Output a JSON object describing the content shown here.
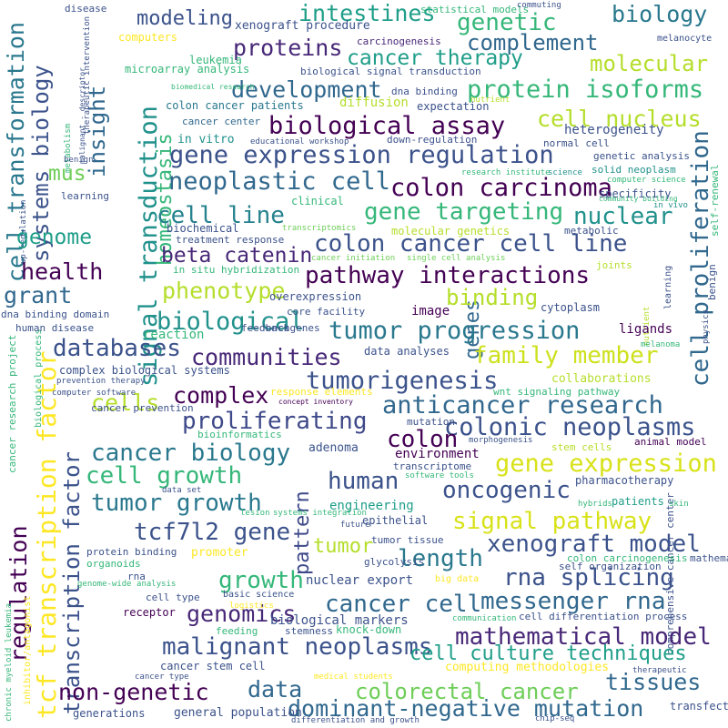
{
  "words": [
    {
      "text": "cell transformation",
      "color": "#2a788e"
    },
    {
      "text": "systems biology",
      "color": "#3b528b"
    },
    {
      "text": "cell proliferation",
      "color": "#31688e"
    },
    {
      "text": "signal transduction",
      "color": "#21918c"
    },
    {
      "text": "tcf transcription factor",
      "color": "#fde725"
    },
    {
      "text": "regulation",
      "color": "#440154"
    },
    {
      "text": "transcription factor",
      "color": "#3b528b"
    },
    {
      "text": "homeostasis",
      "color": "#35b779"
    },
    {
      "text": "insight",
      "color": "#31688e"
    },
    {
      "text": "pattern",
      "color": "#3e4989"
    },
    {
      "text": "genes",
      "color": "#31688e"
    },
    {
      "text": "mus",
      "color": "#6ece58"
    },
    {
      "text": "genome",
      "color": "#1f9e89"
    },
    {
      "text": "health",
      "color": "#440154"
    },
    {
      "text": "grant",
      "color": "#31688e"
    },
    {
      "text": "intestines",
      "color": "#1f9e89"
    },
    {
      "text": "genetic",
      "color": "#35b779"
    },
    {
      "text": "biology",
      "color": "#2a788e"
    },
    {
      "text": "modeling",
      "color": "#3b528b"
    },
    {
      "text": "complement",
      "color": "#31688e"
    },
    {
      "text": "proteins",
      "color": "#482878"
    },
    {
      "text": "cancer therapy",
      "color": "#1f9e89"
    },
    {
      "text": "molecular",
      "color": "#b5de2b"
    },
    {
      "text": "development",
      "color": "#31688e"
    },
    {
      "text": "protein isoforms",
      "color": "#35b779"
    },
    {
      "text": "biological assay",
      "color": "#440154"
    },
    {
      "text": "cell nucleus",
      "color": "#b5de2b"
    },
    {
      "text": "gene expression regulation",
      "color": "#3b528b"
    },
    {
      "text": "neoplastic cell",
      "color": "#31688e"
    },
    {
      "text": "colon carcinoma",
      "color": "#440154"
    },
    {
      "text": "cell line",
      "color": "#26828e"
    },
    {
      "text": "gene targeting",
      "color": "#35b779"
    },
    {
      "text": "nuclear",
      "color": "#21918c"
    },
    {
      "text": "colon cancer cell line",
      "color": "#3b528b"
    },
    {
      "text": "beta catenin",
      "color": "#482878"
    },
    {
      "text": "pathway interactions",
      "color": "#440154"
    },
    {
      "text": "phenotype",
      "color": "#b5de2b"
    },
    {
      "text": "binding",
      "color": "#b5de2b"
    },
    {
      "text": "biological",
      "color": "#21918c"
    },
    {
      "text": "tumor progression",
      "color": "#2a788e"
    },
    {
      "text": "databases",
      "color": "#3b528b"
    },
    {
      "text": "communities",
      "color": "#482878"
    },
    {
      "text": "family member",
      "color": "#cde11d"
    },
    {
      "text": "tumorigenesis",
      "color": "#3b528b"
    },
    {
      "text": "complex",
      "color": "#440154"
    },
    {
      "text": "anticancer research",
      "color": "#31688e"
    },
    {
      "text": "cells",
      "color": "#b5de2b"
    },
    {
      "text": "proliferating",
      "color": "#3e4989"
    },
    {
      "text": "colonic neoplasms",
      "color": "#3b528b"
    },
    {
      "text": "colon",
      "color": "#440154"
    },
    {
      "text": "cancer biology",
      "color": "#2a788e"
    },
    {
      "text": "gene expression",
      "color": "#d8e219"
    },
    {
      "text": "cell growth",
      "color": "#35b779"
    },
    {
      "text": "human",
      "color": "#3b528b"
    },
    {
      "text": "oncogenic",
      "color": "#3b528b"
    },
    {
      "text": "tumor growth",
      "color": "#2a788e"
    },
    {
      "text": "tcf7l2 gene",
      "color": "#3b528b"
    },
    {
      "text": "signal pathway",
      "color": "#d8e219"
    },
    {
      "text": "tumor",
      "color": "#b5de2b"
    },
    {
      "text": "length",
      "color": "#2a788e"
    },
    {
      "text": "xenograft model",
      "color": "#3b528b"
    },
    {
      "text": "growth",
      "color": "#35b779"
    },
    {
      "text": "rna splicing",
      "color": "#3b528b"
    },
    {
      "text": "genomics",
      "color": "#482878"
    },
    {
      "text": "cancer cell",
      "color": "#31688e"
    },
    {
      "text": "messenger rna",
      "color": "#31688e"
    },
    {
      "text": "mathematical model",
      "color": "#482878"
    },
    {
      "text": "malignant neoplasms",
      "color": "#3b528b"
    },
    {
      "text": "cell culture techniques",
      "color": "#1f9e89"
    },
    {
      "text": "non-genetic",
      "color": "#440154"
    },
    {
      "text": "data",
      "color": "#31688e"
    },
    {
      "text": "colorectal cancer",
      "color": "#6ece58"
    },
    {
      "text": "tissues",
      "color": "#31688e"
    },
    {
      "text": "dominant-negative mutation",
      "color": "#31688e"
    },
    {
      "text": "xenograft procedure",
      "color": "#3b528b"
    },
    {
      "text": "computers",
      "color": "#fde725"
    },
    {
      "text": "leukemia",
      "color": "#35b779"
    },
    {
      "text": "carcinogenesis",
      "color": "#482878"
    },
    {
      "text": "microarray analysis",
      "color": "#35b779"
    },
    {
      "text": "biological signal transduction",
      "color": "#3b528b"
    },
    {
      "text": "dna binding",
      "color": "#3b528b"
    },
    {
      "text": "diffusion",
      "color": "#b5de2b"
    },
    {
      "text": "expectation",
      "color": "#3b528b"
    },
    {
      "text": "colon cancer patients",
      "color": "#2a788e"
    },
    {
      "text": "cancer center",
      "color": "#31688e"
    },
    {
      "text": "in vitro",
      "color": "#21918c"
    },
    {
      "text": "educational workshop",
      "color": "#3b528b"
    },
    {
      "text": "down-regulation",
      "color": "#3b528b"
    },
    {
      "text": "heterogeneity",
      "color": "#3b528b"
    },
    {
      "text": "normal cell",
      "color": "#3b528b"
    },
    {
      "text": "genetic analysis",
      "color": "#3b528b"
    },
    {
      "text": "solid neoplasm",
      "color": "#21918c"
    },
    {
      "text": "specificity",
      "color": "#3b528b"
    },
    {
      "text": "research institute",
      "color": "#35b779"
    },
    {
      "text": "science",
      "color": "#21918c"
    },
    {
      "text": "computer science",
      "color": "#35b779"
    },
    {
      "text": "community building",
      "color": "#35b779"
    },
    {
      "text": "in vivo",
      "color": "#21918c"
    },
    {
      "text": "clinical",
      "color": "#35b779"
    },
    {
      "text": "biochemical",
      "color": "#3b528b"
    },
    {
      "text": "treatment response",
      "color": "#3b528b"
    },
    {
      "text": "transcriptomics",
      "color": "#6ece58"
    },
    {
      "text": "molecular genetics",
      "color": "#b5de2b"
    },
    {
      "text": "metabolic",
      "color": "#3b528b"
    },
    {
      "text": "cancer initiation",
      "color": "#6ece58"
    },
    {
      "text": "single cell analysis",
      "color": "#6ece58"
    },
    {
      "text": "in situ hybridization",
      "color": "#35b779"
    },
    {
      "text": "joints",
      "color": "#b5de2b"
    },
    {
      "text": "overexpression",
      "color": "#3b528b"
    },
    {
      "text": "image",
      "color": "#440154"
    },
    {
      "text": "core facility",
      "color": "#3b528b"
    },
    {
      "text": "cytoplasm",
      "color": "#3b528b"
    },
    {
      "text": "dna binding domain",
      "color": "#3b528b"
    },
    {
      "text": "human disease",
      "color": "#3b528b"
    },
    {
      "text": "feedback",
      "color": "#3b528b"
    },
    {
      "text": "oncogenes",
      "color": "#3b528b"
    },
    {
      "text": "reaction",
      "color": "#35b779"
    },
    {
      "text": "ligands",
      "color": "#440154"
    },
    {
      "text": "data analyses",
      "color": "#3b528b"
    },
    {
      "text": "melanoma",
      "color": "#35b779"
    },
    {
      "text": "complex biological systems",
      "color": "#3b528b"
    },
    {
      "text": "collaborations",
      "color": "#b5de2b"
    },
    {
      "text": "prevention therapy",
      "color": "#3b528b"
    },
    {
      "text": "computer software",
      "color": "#3b528b"
    },
    {
      "text": "concept inventory",
      "color": "#440154"
    },
    {
      "text": "response elements",
      "color": "#fde725"
    },
    {
      "text": "wnt signaling pathway",
      "color": "#35b779"
    },
    {
      "text": "cancer prevention",
      "color": "#3b528b"
    },
    {
      "text": "bioinformatics",
      "color": "#35b779"
    },
    {
      "text": "mutation",
      "color": "#3b528b"
    },
    {
      "text": "morphogenesis",
      "color": "#3b528b"
    },
    {
      "text": "stem cells",
      "color": "#b5de2b"
    },
    {
      "text": "animal model",
      "color": "#440154"
    },
    {
      "text": "adenoma",
      "color": "#3b528b"
    },
    {
      "text": "environment",
      "color": "#440154"
    },
    {
      "text": "transcriptome",
      "color": "#3b528b"
    },
    {
      "text": "software tools",
      "color": "#35b779"
    },
    {
      "text": "pharmacotherapy",
      "color": "#3b528b"
    },
    {
      "text": "data set",
      "color": "#3b528b"
    },
    {
      "text": "engineering",
      "color": "#1f9e89"
    },
    {
      "text": "lesion",
      "color": "#35b779"
    },
    {
      "text": "systems integration",
      "color": "#35b779"
    },
    {
      "text": "epithelial",
      "color": "#3b528b"
    },
    {
      "text": "hybrids",
      "color": "#35b779"
    },
    {
      "text": "patients",
      "color": "#1f9e89"
    },
    {
      "text": "skin",
      "color": "#35b779"
    },
    {
      "text": "future",
      "color": "#3b528b"
    },
    {
      "text": "tumor tissue",
      "color": "#3b528b"
    },
    {
      "text": "glycolysis",
      "color": "#3b528b"
    },
    {
      "text": "colon carcinogenesis",
      "color": "#35b779"
    },
    {
      "text": "mathematics",
      "color": "#3b528b"
    },
    {
      "text": "protein binding",
      "color": "#3b528b"
    },
    {
      "text": "promoter",
      "color": "#fde725"
    },
    {
      "text": "organoids",
      "color": "#35b779"
    },
    {
      "text": "self organization",
      "color": "#3b528b"
    },
    {
      "text": "rna",
      "color": "#3b528b"
    },
    {
      "text": "genome-wide analysis",
      "color": "#35b779"
    },
    {
      "text": "cell type",
      "color": "#3b528b"
    },
    {
      "text": "nuclear export",
      "color": "#3b528b"
    },
    {
      "text": "big data",
      "color": "#fde725"
    },
    {
      "text": "basic science",
      "color": "#3b528b"
    },
    {
      "text": "logistics",
      "color": "#fde725"
    },
    {
      "text": "receptor",
      "color": "#440154"
    },
    {
      "text": "biological markers",
      "color": "#3b528b"
    },
    {
      "text": "communication",
      "color": "#35b779"
    },
    {
      "text": "cell differentiation process",
      "color": "#3b528b"
    },
    {
      "text": "feeding",
      "color": "#35b779"
    },
    {
      "text": "stemness",
      "color": "#3b528b"
    },
    {
      "text": "knock-down",
      "color": "#35b779"
    },
    {
      "text": "comprehensive cancer center",
      "color": "#3b528b"
    },
    {
      "text": "cancer stem cell",
      "color": "#3b528b"
    },
    {
      "text": "computing methodologies",
      "color": "#fde725"
    },
    {
      "text": "cancer type",
      "color": "#3b528b"
    },
    {
      "text": "medical students",
      "color": "#fde725"
    },
    {
      "text": "therapeutic",
      "color": "#3b528b"
    },
    {
      "text": "generations",
      "color": "#3b528b"
    },
    {
      "text": "general population",
      "color": "#3b528b"
    },
    {
      "text": "differentiation and growth",
      "color": "#3b528b"
    },
    {
      "text": "chip-seq",
      "color": "#3b528b"
    },
    {
      "text": "transfection",
      "color": "#3b528b"
    },
    {
      "text": "disease",
      "color": "#3b528b"
    },
    {
      "text": "statistical models",
      "color": "#35b779"
    },
    {
      "text": "commuting",
      "color": "#3b528b"
    },
    {
      "text": "melanocyte",
      "color": "#3b528b"
    },
    {
      "text": "biomedical research",
      "color": "#35b779"
    },
    {
      "text": "nutrient",
      "color": "#b5de2b"
    },
    {
      "text": "learning",
      "color": "#3b528b"
    },
    {
      "text": "benign",
      "color": "#3b528b"
    },
    {
      "text": "physics",
      "color": "#3b528b"
    },
    {
      "text": "self-renewal",
      "color": "#35b779"
    },
    {
      "text": "metabolism",
      "color": "#35b779"
    },
    {
      "text": "therapeutic intervention",
      "color": "#3b528b"
    },
    {
      "text": "malignant - descriptor",
      "color": "#3b528b"
    },
    {
      "text": "up-regulation",
      "color": "#3b528b"
    },
    {
      "text": "cancer research project",
      "color": "#35b779"
    },
    {
      "text": "biological process",
      "color": "#35b779"
    },
    {
      "text": "chronic myeloid leukemia",
      "color": "#35b779"
    },
    {
      "text": "inhibitor/antagonist",
      "color": "#fde725"
    },
    {
      "text": "response to injury",
      "color": "#3b528b"
    },
    {
      "text": "left",
      "color": "#3b528b"
    }
  ]
}
